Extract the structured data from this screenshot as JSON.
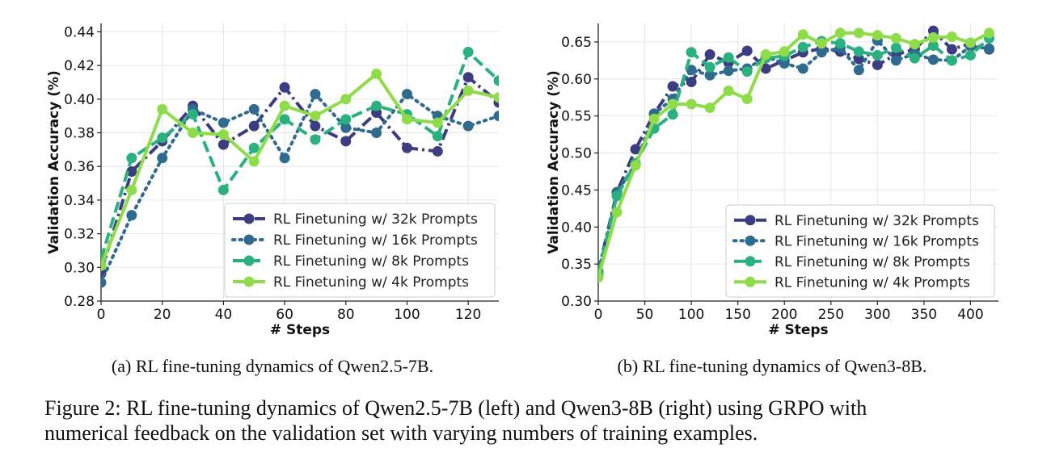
{
  "colors": {
    "s32k": "#3b3c82",
    "s16k": "#2e6b8e",
    "s8k": "#2bb07f",
    "s4k": "#8fdc4a",
    "grid": "#e6e6e6",
    "axis": "#222222"
  },
  "chart_data": [
    {
      "type": "line",
      "xlabel": "# Steps",
      "ylabel": "Validation Accuracy (%)",
      "xlim": [
        0,
        130
      ],
      "ylim": [
        0.28,
        0.445
      ],
      "xticks": [
        0,
        20,
        40,
        60,
        80,
        100,
        120
      ],
      "yticks": [
        0.28,
        0.3,
        0.32,
        0.34,
        0.36,
        0.38,
        0.4,
        0.42,
        0.44
      ],
      "grid": true,
      "legend_position": "lower-right",
      "series": [
        {
          "name": "RL Finetuning w/ 32k Prompts",
          "style": "dashdot",
          "color_key": "s32k",
          "x": [
            0,
            10,
            20,
            30,
            40,
            50,
            60,
            70,
            80,
            90,
            100,
            110,
            120,
            130
          ],
          "y": [
            0.297,
            0.357,
            0.375,
            0.396,
            0.373,
            0.384,
            0.407,
            0.384,
            0.375,
            0.392,
            0.371,
            0.369,
            0.413,
            0.398
          ]
        },
        {
          "name": "RL Finetuning w/ 16k Prompts",
          "style": "dotted",
          "color_key": "s16k",
          "x": [
            0,
            10,
            20,
            30,
            40,
            50,
            60,
            70,
            80,
            90,
            100,
            110,
            120,
            130
          ],
          "y": [
            0.291,
            0.331,
            0.365,
            0.394,
            0.386,
            0.394,
            0.365,
            0.403,
            0.383,
            0.38,
            0.403,
            0.39,
            0.384,
            0.39
          ]
        },
        {
          "name": "RL Finetuning w/ 8k Prompts",
          "style": "dashed",
          "color_key": "s8k",
          "x": [
            0,
            10,
            20,
            30,
            40,
            50,
            60,
            70,
            80,
            90,
            100,
            110,
            120,
            130
          ],
          "y": [
            0.305,
            0.365,
            0.377,
            0.391,
            0.346,
            0.371,
            0.388,
            0.376,
            0.388,
            0.396,
            0.391,
            0.378,
            0.428,
            0.411
          ]
        },
        {
          "name": "RL Finetuning w/ 4k Prompts",
          "style": "solid",
          "color_key": "s4k",
          "x": [
            0,
            10,
            20,
            30,
            40,
            50,
            60,
            70,
            80,
            90,
            100,
            110,
            120,
            130
          ],
          "y": [
            0.301,
            0.346,
            0.394,
            0.38,
            0.379,
            0.363,
            0.396,
            0.39,
            0.4,
            0.415,
            0.388,
            0.386,
            0.405,
            0.401
          ]
        }
      ]
    },
    {
      "type": "line",
      "xlabel": "# Steps",
      "ylabel": "Validation Accuracy (%)",
      "xlim": [
        0,
        430
      ],
      "ylim": [
        0.3,
        0.675
      ],
      "xticks": [
        0,
        50,
        100,
        150,
        200,
        250,
        300,
        350,
        400
      ],
      "yticks": [
        0.3,
        0.35,
        0.4,
        0.45,
        0.5,
        0.55,
        0.6,
        0.65
      ],
      "grid": true,
      "legend_position": "lower-right",
      "series": [
        {
          "name": "RL Finetuning w/ 32k Prompts",
          "style": "dashdot",
          "color_key": "s32k",
          "x": [
            0,
            20,
            40,
            60,
            80,
            100,
            120,
            140,
            160,
            180,
            200,
            220,
            240,
            260,
            280,
            300,
            320,
            340,
            360,
            380,
            400,
            420
          ],
          "y": [
            0.34,
            0.447,
            0.505,
            0.553,
            0.59,
            0.596,
            0.633,
            0.622,
            0.638,
            0.614,
            0.625,
            0.636,
            0.641,
            0.637,
            0.627,
            0.619,
            0.633,
            0.64,
            0.665,
            0.64,
            0.648,
            0.64
          ]
        },
        {
          "name": "RL Finetuning w/ 16k Prompts",
          "style": "dotted",
          "color_key": "s16k",
          "x": [
            0,
            20,
            40,
            60,
            80,
            100,
            120,
            140,
            160,
            180,
            200,
            220,
            240,
            260,
            280,
            300,
            320,
            340,
            360,
            380,
            400,
            420
          ],
          "y": [
            0.335,
            0.447,
            0.485,
            0.553,
            0.573,
            0.612,
            0.605,
            0.611,
            0.614,
            0.63,
            0.621,
            0.614,
            0.636,
            0.642,
            0.612,
            0.652,
            0.625,
            0.634,
            0.626,
            0.625,
            0.644,
            0.641
          ]
        },
        {
          "name": "RL Finetuning w/ 8k Prompts",
          "style": "dashed",
          "color_key": "s8k",
          "x": [
            0,
            20,
            40,
            60,
            80,
            100,
            120,
            140,
            160,
            180,
            200,
            220,
            240,
            260,
            280,
            300,
            320,
            340,
            360,
            380,
            400,
            420
          ],
          "y": [
            0.338,
            0.442,
            0.486,
            0.533,
            0.552,
            0.636,
            0.616,
            0.629,
            0.61,
            0.628,
            0.631,
            0.643,
            0.651,
            0.648,
            0.637,
            0.632,
            0.642,
            0.628,
            0.645,
            0.625,
            0.632,
            0.655
          ]
        },
        {
          "name": "RL Finetuning w/ 4k Prompts",
          "style": "solid",
          "color_key": "s4k",
          "x": [
            0,
            20,
            40,
            60,
            80,
            100,
            120,
            140,
            160,
            180,
            200,
            220,
            240,
            260,
            280,
            300,
            320,
            340,
            360,
            380,
            400,
            420
          ],
          "y": [
            0.332,
            0.42,
            0.483,
            0.546,
            0.566,
            0.566,
            0.561,
            0.584,
            0.573,
            0.633,
            0.637,
            0.66,
            0.648,
            0.662,
            0.662,
            0.659,
            0.655,
            0.647,
            0.656,
            0.657,
            0.649,
            0.662
          ]
        }
      ]
    }
  ],
  "captions": {
    "sub_a": "(a) RL fine-tuning dynamics of Qwen2.5-7B.",
    "sub_b": "(b) RL fine-tuning dynamics of Qwen3-8B.",
    "main_line1": "Figure 2: RL fine-tuning dynamics of Qwen2.5-7B (left) and Qwen3-8B (right) using GRPO with",
    "main_line2": "numerical feedback on the validation set with varying numbers of training examples."
  }
}
